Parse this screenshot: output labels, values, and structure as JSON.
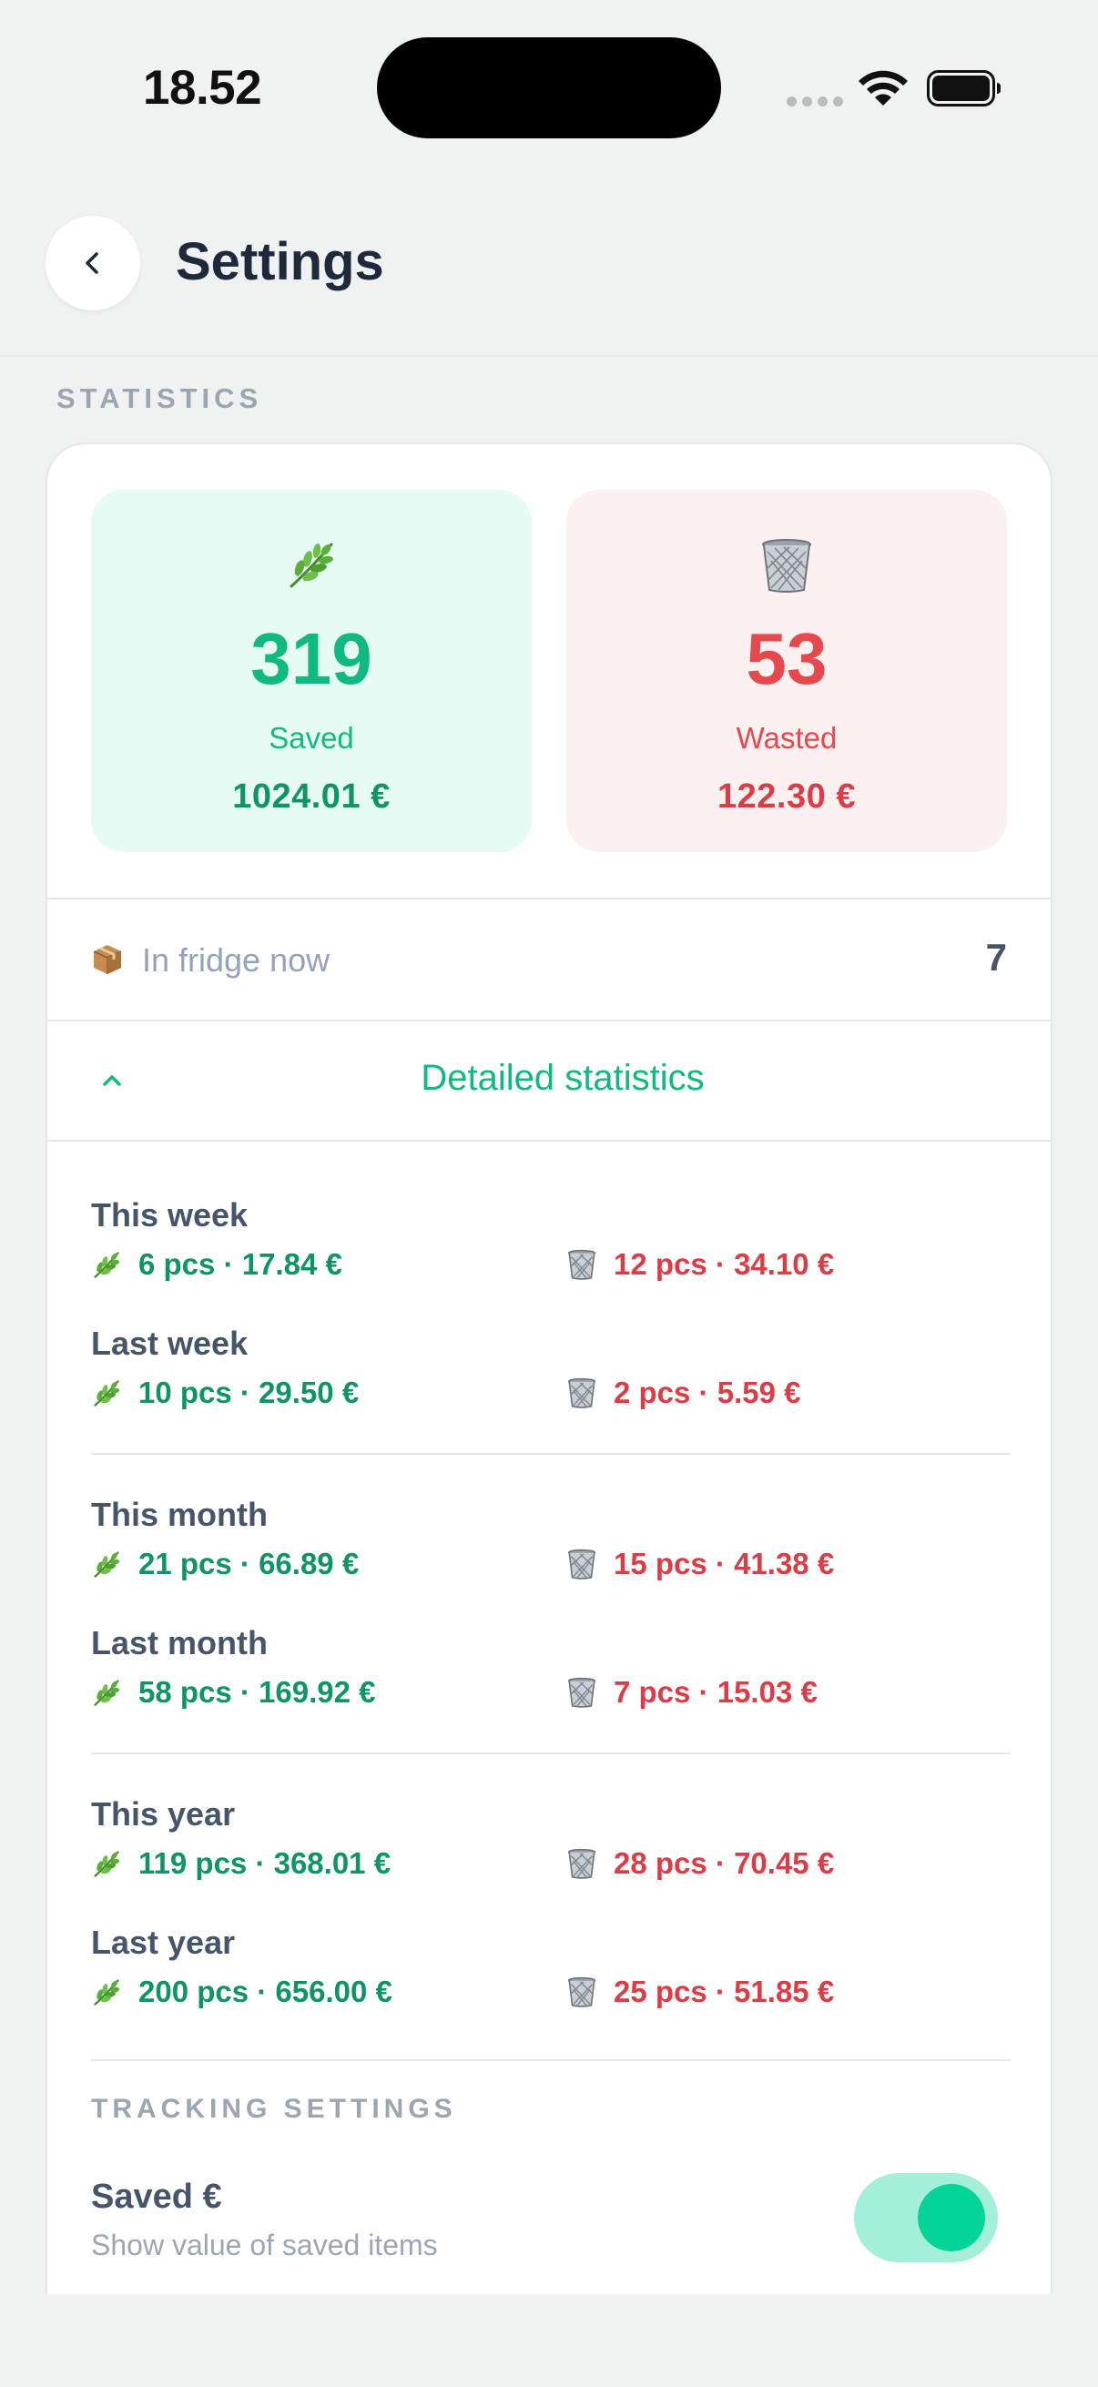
{
  "status_bar": {
    "time": "18.52"
  },
  "header": {
    "title": "Settings"
  },
  "statistics": {
    "section_label": "STATISTICS",
    "saved": {
      "emoji": "🌿",
      "count": "319",
      "label": "Saved",
      "value": "1024.01 €"
    },
    "wasted": {
      "emoji": "🗑️",
      "count": "53",
      "label": "Wasted",
      "value": "122.30 €"
    },
    "fridge": {
      "emoji": "📦",
      "label": "In fridge now",
      "count": "7"
    },
    "detail_toggle_label": "Detailed statistics",
    "periods": [
      {
        "title": "This week",
        "saved": "6 pcs · 17.84 €",
        "wasted": "12 pcs · 34.10 €"
      },
      {
        "title": "Last week",
        "saved": "10 pcs · 29.50 €",
        "wasted": "2 pcs · 5.59 €"
      },
      {
        "title": "This month",
        "saved": "21 pcs · 66.89 €",
        "wasted": "15 pcs · 41.38 €"
      },
      {
        "title": "Last month",
        "saved": "58 pcs · 169.92 €",
        "wasted": "7 pcs · 15.03 €"
      },
      {
        "title": "This year",
        "saved": "119 pcs · 368.01 €",
        "wasted": "28 pcs · 70.45 €"
      },
      {
        "title": "Last year",
        "saved": "200 pcs · 656.00 €",
        "wasted": "25 pcs · 51.85 €"
      }
    ]
  },
  "tracking_settings": {
    "section_label": "TRACKING SETTINGS",
    "saved_toggle": {
      "title": "Saved €",
      "subtitle": "Show value of saved items",
      "enabled": true
    }
  },
  "colors": {
    "accent_green": "#10b981",
    "accent_red": "#e5484d",
    "toggle_on": "#05d499"
  }
}
